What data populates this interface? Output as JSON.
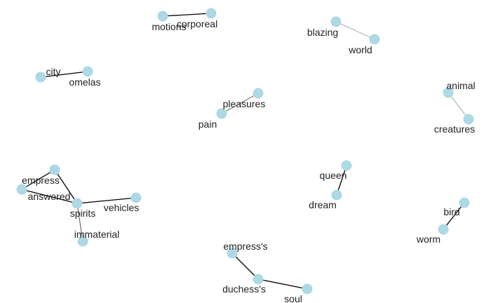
{
  "colors": {
    "background": "#ffffff",
    "node_fill": "#add8e6",
    "label_text": "#222222",
    "edge_strong": "#000000",
    "edge_medium": "#555555",
    "edge_light": "#999999"
  },
  "graph": {
    "nodes": [
      {
        "id": "motions",
        "label": "motions"
      },
      {
        "id": "corporeal",
        "label": "corporeal"
      },
      {
        "id": "blazing",
        "label": "blazing"
      },
      {
        "id": "world",
        "label": "world"
      },
      {
        "id": "city",
        "label": "city"
      },
      {
        "id": "omelas",
        "label": "omelas"
      },
      {
        "id": "pleasures",
        "label": "pleasures"
      },
      {
        "id": "pain",
        "label": "pain"
      },
      {
        "id": "animal",
        "label": "animal"
      },
      {
        "id": "creatures",
        "label": "creatures"
      },
      {
        "id": "empress",
        "label": "empress"
      },
      {
        "id": "answered",
        "label": "answered"
      },
      {
        "id": "spirits",
        "label": "spirits"
      },
      {
        "id": "vehicles",
        "label": "vehicles"
      },
      {
        "id": "immaterial",
        "label": "immaterial"
      },
      {
        "id": "queen",
        "label": "queen"
      },
      {
        "id": "dream",
        "label": "dream"
      },
      {
        "id": "bird",
        "label": "bird"
      },
      {
        "id": "worm",
        "label": "worm"
      },
      {
        "id": "empress_s",
        "label": "empress's"
      },
      {
        "id": "duchess_s",
        "label": "duchess's"
      },
      {
        "id": "soul",
        "label": "soul"
      }
    ],
    "edges": [
      {
        "source": "motions",
        "target": "corporeal",
        "strength": "strong"
      },
      {
        "source": "blazing",
        "target": "world",
        "strength": "light"
      },
      {
        "source": "city",
        "target": "omelas",
        "strength": "strong"
      },
      {
        "source": "pleasures",
        "target": "pain",
        "strength": "medium"
      },
      {
        "source": "animal",
        "target": "creatures",
        "strength": "light"
      },
      {
        "source": "empress",
        "target": "answered",
        "strength": "strong"
      },
      {
        "source": "empress",
        "target": "spirits",
        "strength": "strong"
      },
      {
        "source": "answered",
        "target": "spirits",
        "strength": "strong"
      },
      {
        "source": "spirits",
        "target": "vehicles",
        "strength": "strong"
      },
      {
        "source": "spirits",
        "target": "immaterial",
        "strength": "medium"
      },
      {
        "source": "queen",
        "target": "dream",
        "strength": "strong"
      },
      {
        "source": "bird",
        "target": "worm",
        "strength": "strong"
      },
      {
        "source": "empress_s",
        "target": "duchess_s",
        "strength": "strong"
      },
      {
        "source": "duchess_s",
        "target": "soul",
        "strength": "strong"
      }
    ]
  }
}
